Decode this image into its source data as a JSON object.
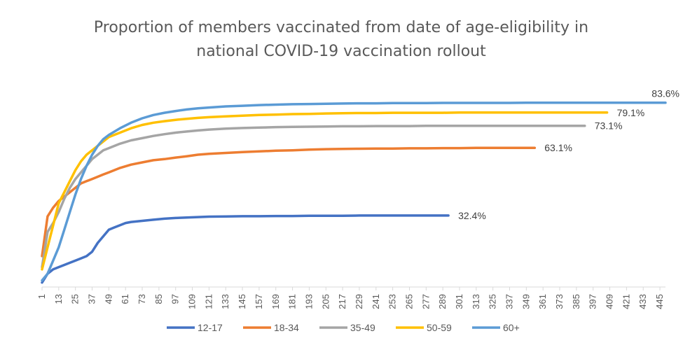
{
  "chart_data": {
    "type": "line",
    "title_lines": [
      "Proportion of members vaccinated from date of age-eligibility in",
      "national COVID-19 vaccination rollout"
    ],
    "xlabel": "",
    "ylabel": "",
    "y_axis_shown": false,
    "grid": false,
    "legend_position": "bottom",
    "x_ticks": [
      1,
      13,
      25,
      37,
      49,
      61,
      73,
      85,
      97,
      109,
      121,
      133,
      145,
      157,
      169,
      181,
      193,
      205,
      217,
      229,
      241,
      253,
      265,
      277,
      289,
      301,
      313,
      325,
      337,
      349,
      361,
      373,
      385,
      397,
      409,
      421,
      433,
      445
    ],
    "ylim": [
      0,
      100
    ],
    "series": [
      {
        "name": "12-17",
        "color": "#4472C4",
        "end_label": "32.4%",
        "points": [
          [
            1,
            2
          ],
          [
            5,
            6
          ],
          [
            9,
            8
          ],
          [
            13,
            9
          ],
          [
            17,
            10
          ],
          [
            21,
            11
          ],
          [
            25,
            12
          ],
          [
            29,
            13
          ],
          [
            33,
            14
          ],
          [
            37,
            16
          ],
          [
            41,
            20
          ],
          [
            45,
            23
          ],
          [
            49,
            26
          ],
          [
            53,
            27
          ],
          [
            57,
            28
          ],
          [
            61,
            29
          ],
          [
            65,
            29.5
          ],
          [
            73,
            30
          ],
          [
            81,
            30.5
          ],
          [
            89,
            31
          ],
          [
            97,
            31.3
          ],
          [
            105,
            31.5
          ],
          [
            113,
            31.7
          ],
          [
            121,
            31.9
          ],
          [
            133,
            32
          ],
          [
            145,
            32.1
          ],
          [
            157,
            32.1
          ],
          [
            169,
            32.2
          ],
          [
            181,
            32.2
          ],
          [
            193,
            32.3
          ],
          [
            205,
            32.3
          ],
          [
            217,
            32.3
          ],
          [
            229,
            32.4
          ],
          [
            241,
            32.4
          ],
          [
            253,
            32.4
          ],
          [
            265,
            32.4
          ],
          [
            277,
            32.4
          ],
          [
            289,
            32.4
          ],
          [
            293,
            32.4
          ]
        ]
      },
      {
        "name": "18-34",
        "color": "#ED7D31",
        "end_label": "63.1%",
        "points": [
          [
            1,
            14
          ],
          [
            5,
            32
          ],
          [
            9,
            36
          ],
          [
            13,
            39
          ],
          [
            17,
            41
          ],
          [
            21,
            43
          ],
          [
            25,
            45
          ],
          [
            29,
            47
          ],
          [
            33,
            48
          ],
          [
            37,
            49
          ],
          [
            41,
            50
          ],
          [
            45,
            51
          ],
          [
            49,
            52
          ],
          [
            57,
            54
          ],
          [
            65,
            55.5
          ],
          [
            73,
            56.5
          ],
          [
            81,
            57.5
          ],
          [
            89,
            58
          ],
          [
            97,
            58.7
          ],
          [
            105,
            59.3
          ],
          [
            113,
            60
          ],
          [
            121,
            60.4
          ],
          [
            133,
            60.8
          ],
          [
            145,
            61.2
          ],
          [
            157,
            61.5
          ],
          [
            169,
            61.8
          ],
          [
            181,
            62
          ],
          [
            193,
            62.3
          ],
          [
            205,
            62.5
          ],
          [
            217,
            62.6
          ],
          [
            229,
            62.7
          ],
          [
            241,
            62.8
          ],
          [
            253,
            62.8
          ],
          [
            265,
            62.9
          ],
          [
            277,
            62.9
          ],
          [
            289,
            63
          ],
          [
            301,
            63
          ],
          [
            313,
            63.1
          ],
          [
            325,
            63.1
          ],
          [
            337,
            63.1
          ],
          [
            349,
            63.1
          ],
          [
            355,
            63.1
          ]
        ]
      },
      {
        "name": "35-49",
        "color": "#A5A5A5",
        "end_label": "73.1%",
        "points": [
          [
            1,
            9
          ],
          [
            5,
            25
          ],
          [
            9,
            29
          ],
          [
            13,
            34
          ],
          [
            17,
            40
          ],
          [
            21,
            45
          ],
          [
            25,
            49
          ],
          [
            29,
            52
          ],
          [
            33,
            55
          ],
          [
            37,
            58
          ],
          [
            41,
            60
          ],
          [
            45,
            62
          ],
          [
            49,
            63
          ],
          [
            57,
            65
          ],
          [
            65,
            66.5
          ],
          [
            73,
            67.5
          ],
          [
            81,
            68.5
          ],
          [
            89,
            69.3
          ],
          [
            97,
            70
          ],
          [
            105,
            70.5
          ],
          [
            113,
            71
          ],
          [
            121,
            71.4
          ],
          [
            133,
            71.8
          ],
          [
            145,
            72.1
          ],
          [
            157,
            72.3
          ],
          [
            169,
            72.5
          ],
          [
            181,
            72.6
          ],
          [
            193,
            72.7
          ],
          [
            205,
            72.8
          ],
          [
            217,
            72.9
          ],
          [
            229,
            72.9
          ],
          [
            241,
            73
          ],
          [
            253,
            73
          ],
          [
            265,
            73
          ],
          [
            277,
            73.1
          ],
          [
            289,
            73.1
          ],
          [
            301,
            73.1
          ],
          [
            313,
            73.1
          ],
          [
            325,
            73.1
          ],
          [
            337,
            73.1
          ],
          [
            349,
            73.1
          ],
          [
            361,
            73.1
          ],
          [
            373,
            73.1
          ],
          [
            385,
            73.1
          ],
          [
            391,
            73.1
          ]
        ]
      },
      {
        "name": "50-59",
        "color": "#FFC000",
        "end_label": "79.1%",
        "points": [
          [
            1,
            8
          ],
          [
            5,
            18
          ],
          [
            9,
            28
          ],
          [
            13,
            38
          ],
          [
            17,
            43
          ],
          [
            21,
            48
          ],
          [
            25,
            53
          ],
          [
            29,
            57
          ],
          [
            33,
            60
          ],
          [
            37,
            62
          ],
          [
            41,
            64
          ],
          [
            45,
            66
          ],
          [
            49,
            68
          ],
          [
            57,
            70
          ],
          [
            65,
            72
          ],
          [
            73,
            73.5
          ],
          [
            81,
            74.5
          ],
          [
            89,
            75.2
          ],
          [
            97,
            75.8
          ],
          [
            105,
            76.3
          ],
          [
            113,
            76.7
          ],
          [
            121,
            77
          ],
          [
            133,
            77.4
          ],
          [
            145,
            77.7
          ],
          [
            157,
            78
          ],
          [
            169,
            78.2
          ],
          [
            181,
            78.4
          ],
          [
            193,
            78.5
          ],
          [
            205,
            78.7
          ],
          [
            217,
            78.8
          ],
          [
            229,
            78.9
          ],
          [
            241,
            78.9
          ],
          [
            253,
            79
          ],
          [
            265,
            79
          ],
          [
            277,
            79
          ],
          [
            289,
            79
          ],
          [
            301,
            79.1
          ],
          [
            313,
            79.1
          ],
          [
            325,
            79.1
          ],
          [
            337,
            79.1
          ],
          [
            349,
            79.1
          ],
          [
            361,
            79.1
          ],
          [
            373,
            79.1
          ],
          [
            385,
            79.1
          ],
          [
            397,
            79.1
          ],
          [
            407,
            79.1
          ]
        ]
      },
      {
        "name": "60+",
        "color": "#5B9BD5",
        "end_label": "83.6%",
        "points": [
          [
            1,
            3
          ],
          [
            5,
            6
          ],
          [
            9,
            12
          ],
          [
            13,
            18
          ],
          [
            17,
            26
          ],
          [
            21,
            34
          ],
          [
            25,
            42
          ],
          [
            29,
            49
          ],
          [
            33,
            55
          ],
          [
            37,
            60
          ],
          [
            41,
            64
          ],
          [
            45,
            67
          ],
          [
            49,
            69
          ],
          [
            57,
            72
          ],
          [
            65,
            74.5
          ],
          [
            73,
            76.5
          ],
          [
            81,
            78
          ],
          [
            89,
            79
          ],
          [
            97,
            79.8
          ],
          [
            105,
            80.5
          ],
          [
            113,
            81
          ],
          [
            121,
            81.4
          ],
          [
            133,
            81.9
          ],
          [
            145,
            82.2
          ],
          [
            157,
            82.5
          ],
          [
            169,
            82.7
          ],
          [
            181,
            82.9
          ],
          [
            193,
            83
          ],
          [
            205,
            83.1
          ],
          [
            217,
            83.2
          ],
          [
            229,
            83.3
          ],
          [
            241,
            83.3
          ],
          [
            253,
            83.4
          ],
          [
            265,
            83.4
          ],
          [
            277,
            83.4
          ],
          [
            289,
            83.5
          ],
          [
            301,
            83.5
          ],
          [
            313,
            83.5
          ],
          [
            325,
            83.5
          ],
          [
            337,
            83.5
          ],
          [
            349,
            83.6
          ],
          [
            361,
            83.6
          ],
          [
            373,
            83.6
          ],
          [
            385,
            83.6
          ],
          [
            397,
            83.6
          ],
          [
            409,
            83.6
          ],
          [
            421,
            83.6
          ],
          [
            433,
            83.6
          ],
          [
            445,
            83.6
          ],
          [
            449,
            83.6
          ]
        ]
      }
    ]
  }
}
